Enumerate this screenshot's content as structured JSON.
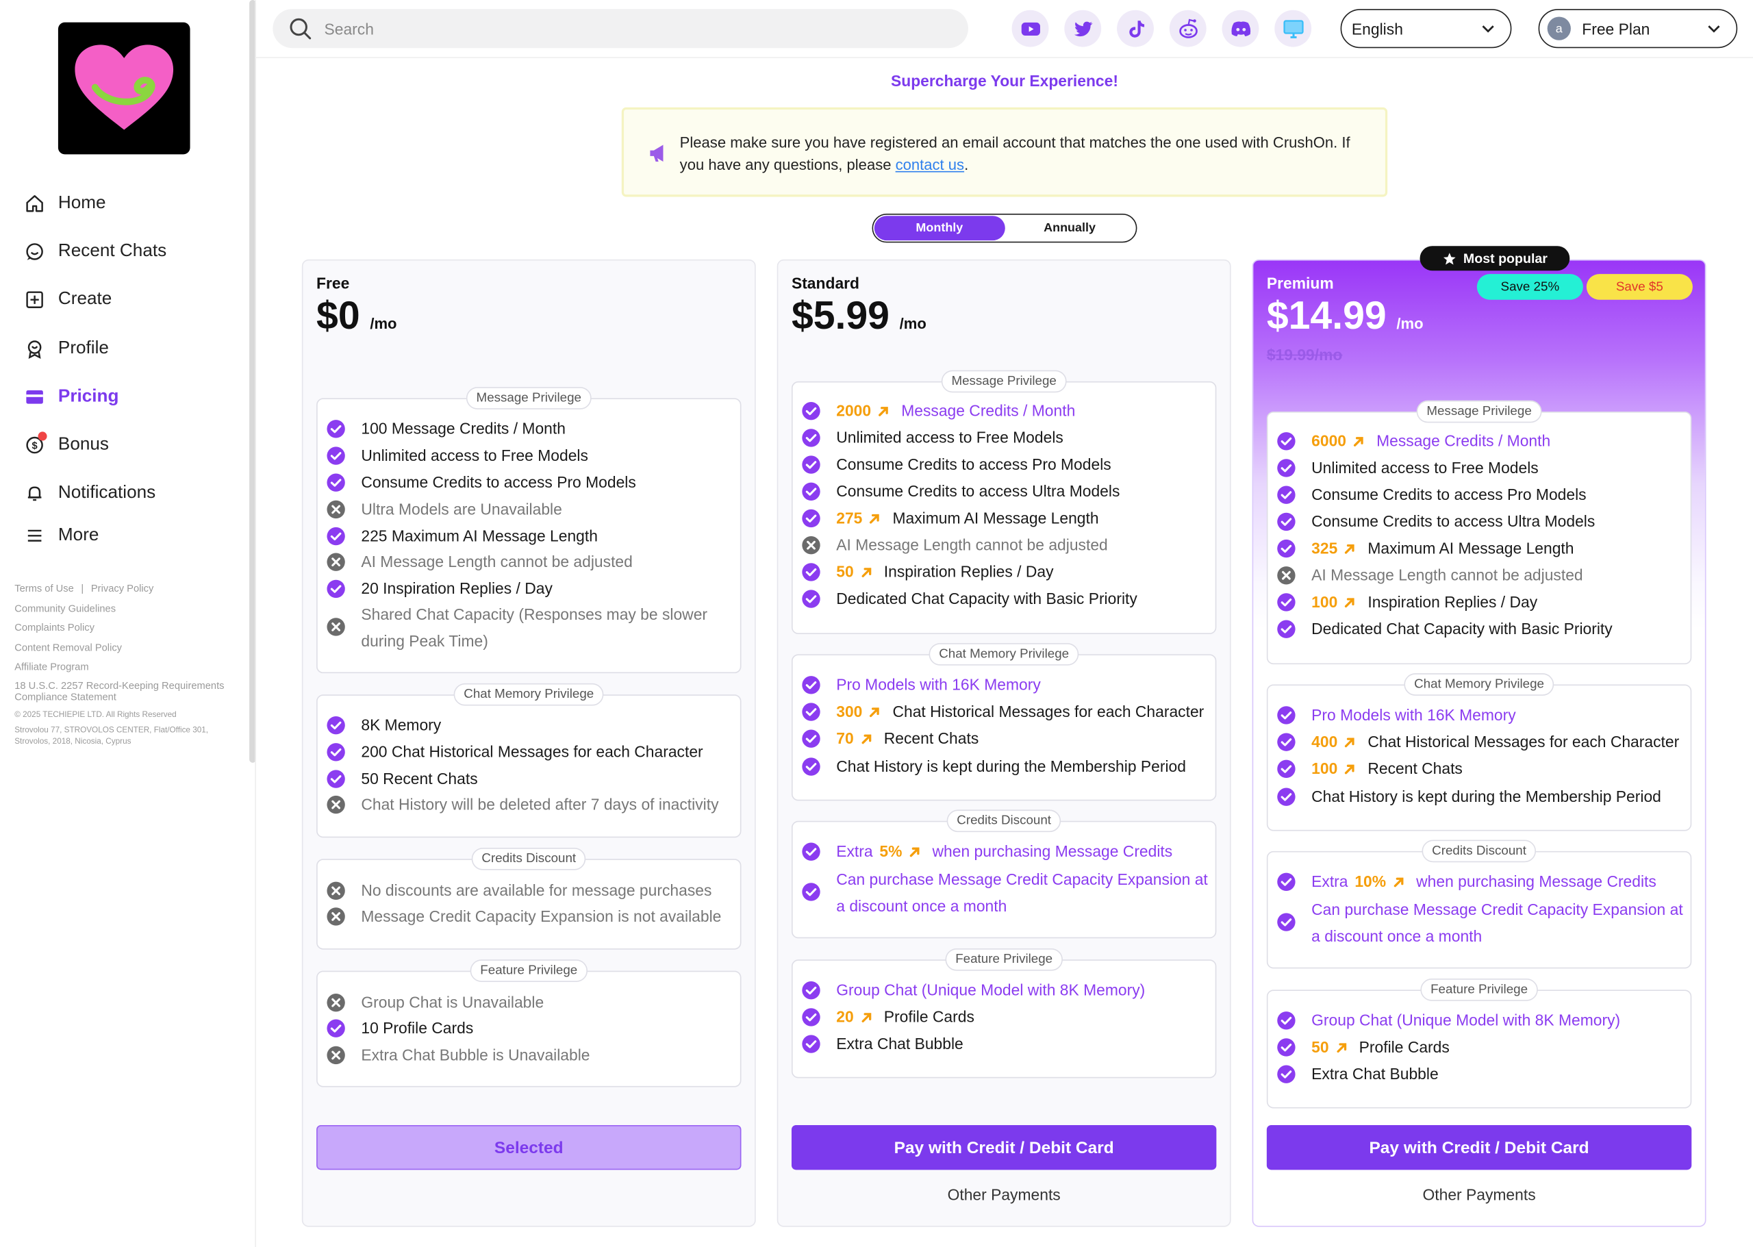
{
  "sidebar": {
    "logo": "heart-logo",
    "items": [
      {
        "label": "Home",
        "icon": "home-icon"
      },
      {
        "label": "Recent Chats",
        "icon": "chat-bubble-icon"
      },
      {
        "label": "Create",
        "icon": "plus-square-icon"
      },
      {
        "label": "Profile",
        "icon": "profile-icon"
      },
      {
        "label": "Pricing",
        "icon": "card-icon",
        "active": true
      },
      {
        "label": "Bonus",
        "icon": "coin-icon"
      },
      {
        "label": "Notifications",
        "icon": "bell-icon"
      },
      {
        "label": "More",
        "icon": "menu-icon"
      }
    ],
    "footer": {
      "terms": "Terms of Use",
      "sep": "|",
      "privacy": "Privacy Policy",
      "community": "Community Guidelines",
      "complaints": "Complaints Policy",
      "removal": "Content Removal Policy",
      "affiliate": "Affiliate Program",
      "usc": "18 U.S.C. 2257 Record-Keeping Requirements Compliance Statement",
      "copyright": "© 2025 TECHIEPIE LTD. All Rights Reserved",
      "address": "Strovolou 77, STROVOLOS CENTER, Flat/Office 301, Strovolos, 2018, Nicosia, Cyprus"
    }
  },
  "topbar": {
    "search_placeholder": "Search",
    "social": [
      "youtube-icon",
      "twitter-icon",
      "tiktok-icon",
      "reddit-icon",
      "discord-icon",
      "desktop-icon"
    ],
    "language": "English",
    "plan_avatar": "a",
    "plan": "Free Plan"
  },
  "headline": "Supercharge Your Experience!",
  "notice": {
    "text_before": "Please make sure you have registered an email account that matches the one used with CrushOn. If you have any questions, please ",
    "link": "contact us",
    "text_after": "."
  },
  "billing": {
    "monthly": "Monthly",
    "annually": "Annually",
    "selected": "Monthly"
  },
  "plans": {
    "free": {
      "name": "Free",
      "price": "$0",
      "per": "/mo",
      "sections": {
        "message": {
          "title": "Message Privilege",
          "rows": [
            {
              "on": true,
              "text": "100 Message Credits / Month"
            },
            {
              "on": true,
              "text": "Unlimited access to Free Models"
            },
            {
              "on": true,
              "text": "Consume Credits to access Pro Models"
            },
            {
              "on": false,
              "text": "Ultra Models are Unavailable"
            },
            {
              "on": true,
              "text": "225 Maximum AI Message Length"
            },
            {
              "on": false,
              "text": "AI Message Length cannot be adjusted"
            },
            {
              "on": true,
              "text": "20 Inspiration Replies / Day"
            },
            {
              "on": false,
              "text": "Shared Chat Capacity (Responses may be slower during Peak Time)"
            }
          ]
        },
        "memory": {
          "title": "Chat Memory Privilege",
          "rows": [
            {
              "on": true,
              "text": "8K Memory"
            },
            {
              "on": true,
              "text": "200 Chat Historical Messages for each Character"
            },
            {
              "on": true,
              "text": "50 Recent Chats"
            },
            {
              "on": false,
              "text": "Chat History will be deleted after 7 days of inactivity"
            }
          ]
        },
        "credits": {
          "title": "Credits Discount",
          "rows": [
            {
              "on": false,
              "text": "No discounts are available for message purchases"
            },
            {
              "on": false,
              "text": "Message Credit Capacity Expansion is not available"
            }
          ]
        },
        "feature": {
          "title": "Feature Privilege",
          "rows": [
            {
              "on": false,
              "text": "Group Chat is Unavailable"
            },
            {
              "on": true,
              "text": "10 Profile Cards"
            },
            {
              "on": false,
              "text": "Extra Chat Bubble is Unavailable"
            }
          ]
        }
      },
      "button": "Selected"
    },
    "standard": {
      "name": "Standard",
      "price": "$5.99",
      "per": "/mo",
      "sections": {
        "message": {
          "title": "Message Privilege",
          "rows": [
            {
              "on": true,
              "num": "2000",
              "text": "Message Credits / Month",
              "purple": true
            },
            {
              "on": true,
              "text": "Unlimited access to Free Models"
            },
            {
              "on": true,
              "text": "Consume Credits to access Pro Models"
            },
            {
              "on": true,
              "text": "Consume Credits to access Ultra Models"
            },
            {
              "on": true,
              "num": "275",
              "text": "Maximum AI Message Length"
            },
            {
              "on": false,
              "text": "AI Message Length cannot be adjusted"
            },
            {
              "on": true,
              "num": "50",
              "text": "Inspiration Replies / Day"
            },
            {
              "on": true,
              "text": "Dedicated Chat Capacity with Basic Priority"
            }
          ]
        },
        "memory": {
          "title": "Chat Memory Privilege",
          "rows": [
            {
              "on": true,
              "text": "Pro Models with 16K Memory",
              "purple": true
            },
            {
              "on": true,
              "num": "300",
              "text": "Chat Historical Messages for each Character"
            },
            {
              "on": true,
              "num": "70",
              "text": "Recent Chats"
            },
            {
              "on": true,
              "text": "Chat History is kept during the Membership Period"
            }
          ]
        },
        "credits": {
          "title": "Credits Discount",
          "rows": [
            {
              "on": true,
              "pre": "Extra",
              "num": "5%",
              "text": "when purchasing Message Credits",
              "purple": true
            },
            {
              "on": true,
              "text": "Can purchase Message Credit Capacity Expansion at a discount once a month",
              "purple": true
            }
          ]
        },
        "feature": {
          "title": "Feature Privilege",
          "rows": [
            {
              "on": true,
              "text": "Group Chat (Unique Model with 8K Memory)",
              "purple": true
            },
            {
              "on": true,
              "num": "20",
              "text": "Profile Cards"
            },
            {
              "on": true,
              "text": "Extra Chat Bubble"
            }
          ]
        }
      },
      "button": "Pay with Credit / Debit Card",
      "other": "Other Payments"
    },
    "premium": {
      "name": "Premium",
      "price": "$14.99",
      "per": "/mo",
      "old_price": "$19.99/mo",
      "badge": "Most popular",
      "save_pct": "Save 25%",
      "save_amt": "Save $5",
      "sections": {
        "message": {
          "title": "Message Privilege",
          "rows": [
            {
              "on": true,
              "num": "6000",
              "text": "Message Credits / Month",
              "purple": true
            },
            {
              "on": true,
              "text": "Unlimited access to Free Models"
            },
            {
              "on": true,
              "text": "Consume Credits to access Pro Models"
            },
            {
              "on": true,
              "text": "Consume Credits to access Ultra Models"
            },
            {
              "on": true,
              "num": "325",
              "text": "Maximum AI Message Length"
            },
            {
              "on": false,
              "text": "AI Message Length cannot be adjusted"
            },
            {
              "on": true,
              "num": "100",
              "text": "Inspiration Replies / Day"
            },
            {
              "on": true,
              "text": "Dedicated Chat Capacity with Basic Priority"
            }
          ]
        },
        "memory": {
          "title": "Chat Memory Privilege",
          "rows": [
            {
              "on": true,
              "text": "Pro Models with 16K Memory",
              "purple": true
            },
            {
              "on": true,
              "num": "400",
              "text": "Chat Historical Messages for each Character"
            },
            {
              "on": true,
              "num": "100",
              "text": "Recent Chats"
            },
            {
              "on": true,
              "text": "Chat History is kept during the Membership Period"
            }
          ]
        },
        "credits": {
          "title": "Credits Discount",
          "rows": [
            {
              "on": true,
              "pre": "Extra",
              "num": "10%",
              "text": "when purchasing Message Credits",
              "purple": true
            },
            {
              "on": true,
              "text": "Can purchase Message Credit Capacity Expansion at a discount once a month",
              "purple": true
            }
          ]
        },
        "feature": {
          "title": "Feature Privilege",
          "rows": [
            {
              "on": true,
              "text": "Group Chat (Unique Model with 8K Memory)",
              "purple": true
            },
            {
              "on": true,
              "num": "50",
              "text": "Profile Cards"
            },
            {
              "on": true,
              "text": "Extra Chat Bubble"
            }
          ]
        }
      },
      "button": "Pay with Credit / Debit Card",
      "other": "Other Payments"
    }
  },
  "colors": {
    "accent": "#7c3aed",
    "highlight": "#f59e0b",
    "check": "#8b3cf0",
    "cross": "#6b6b6b"
  }
}
